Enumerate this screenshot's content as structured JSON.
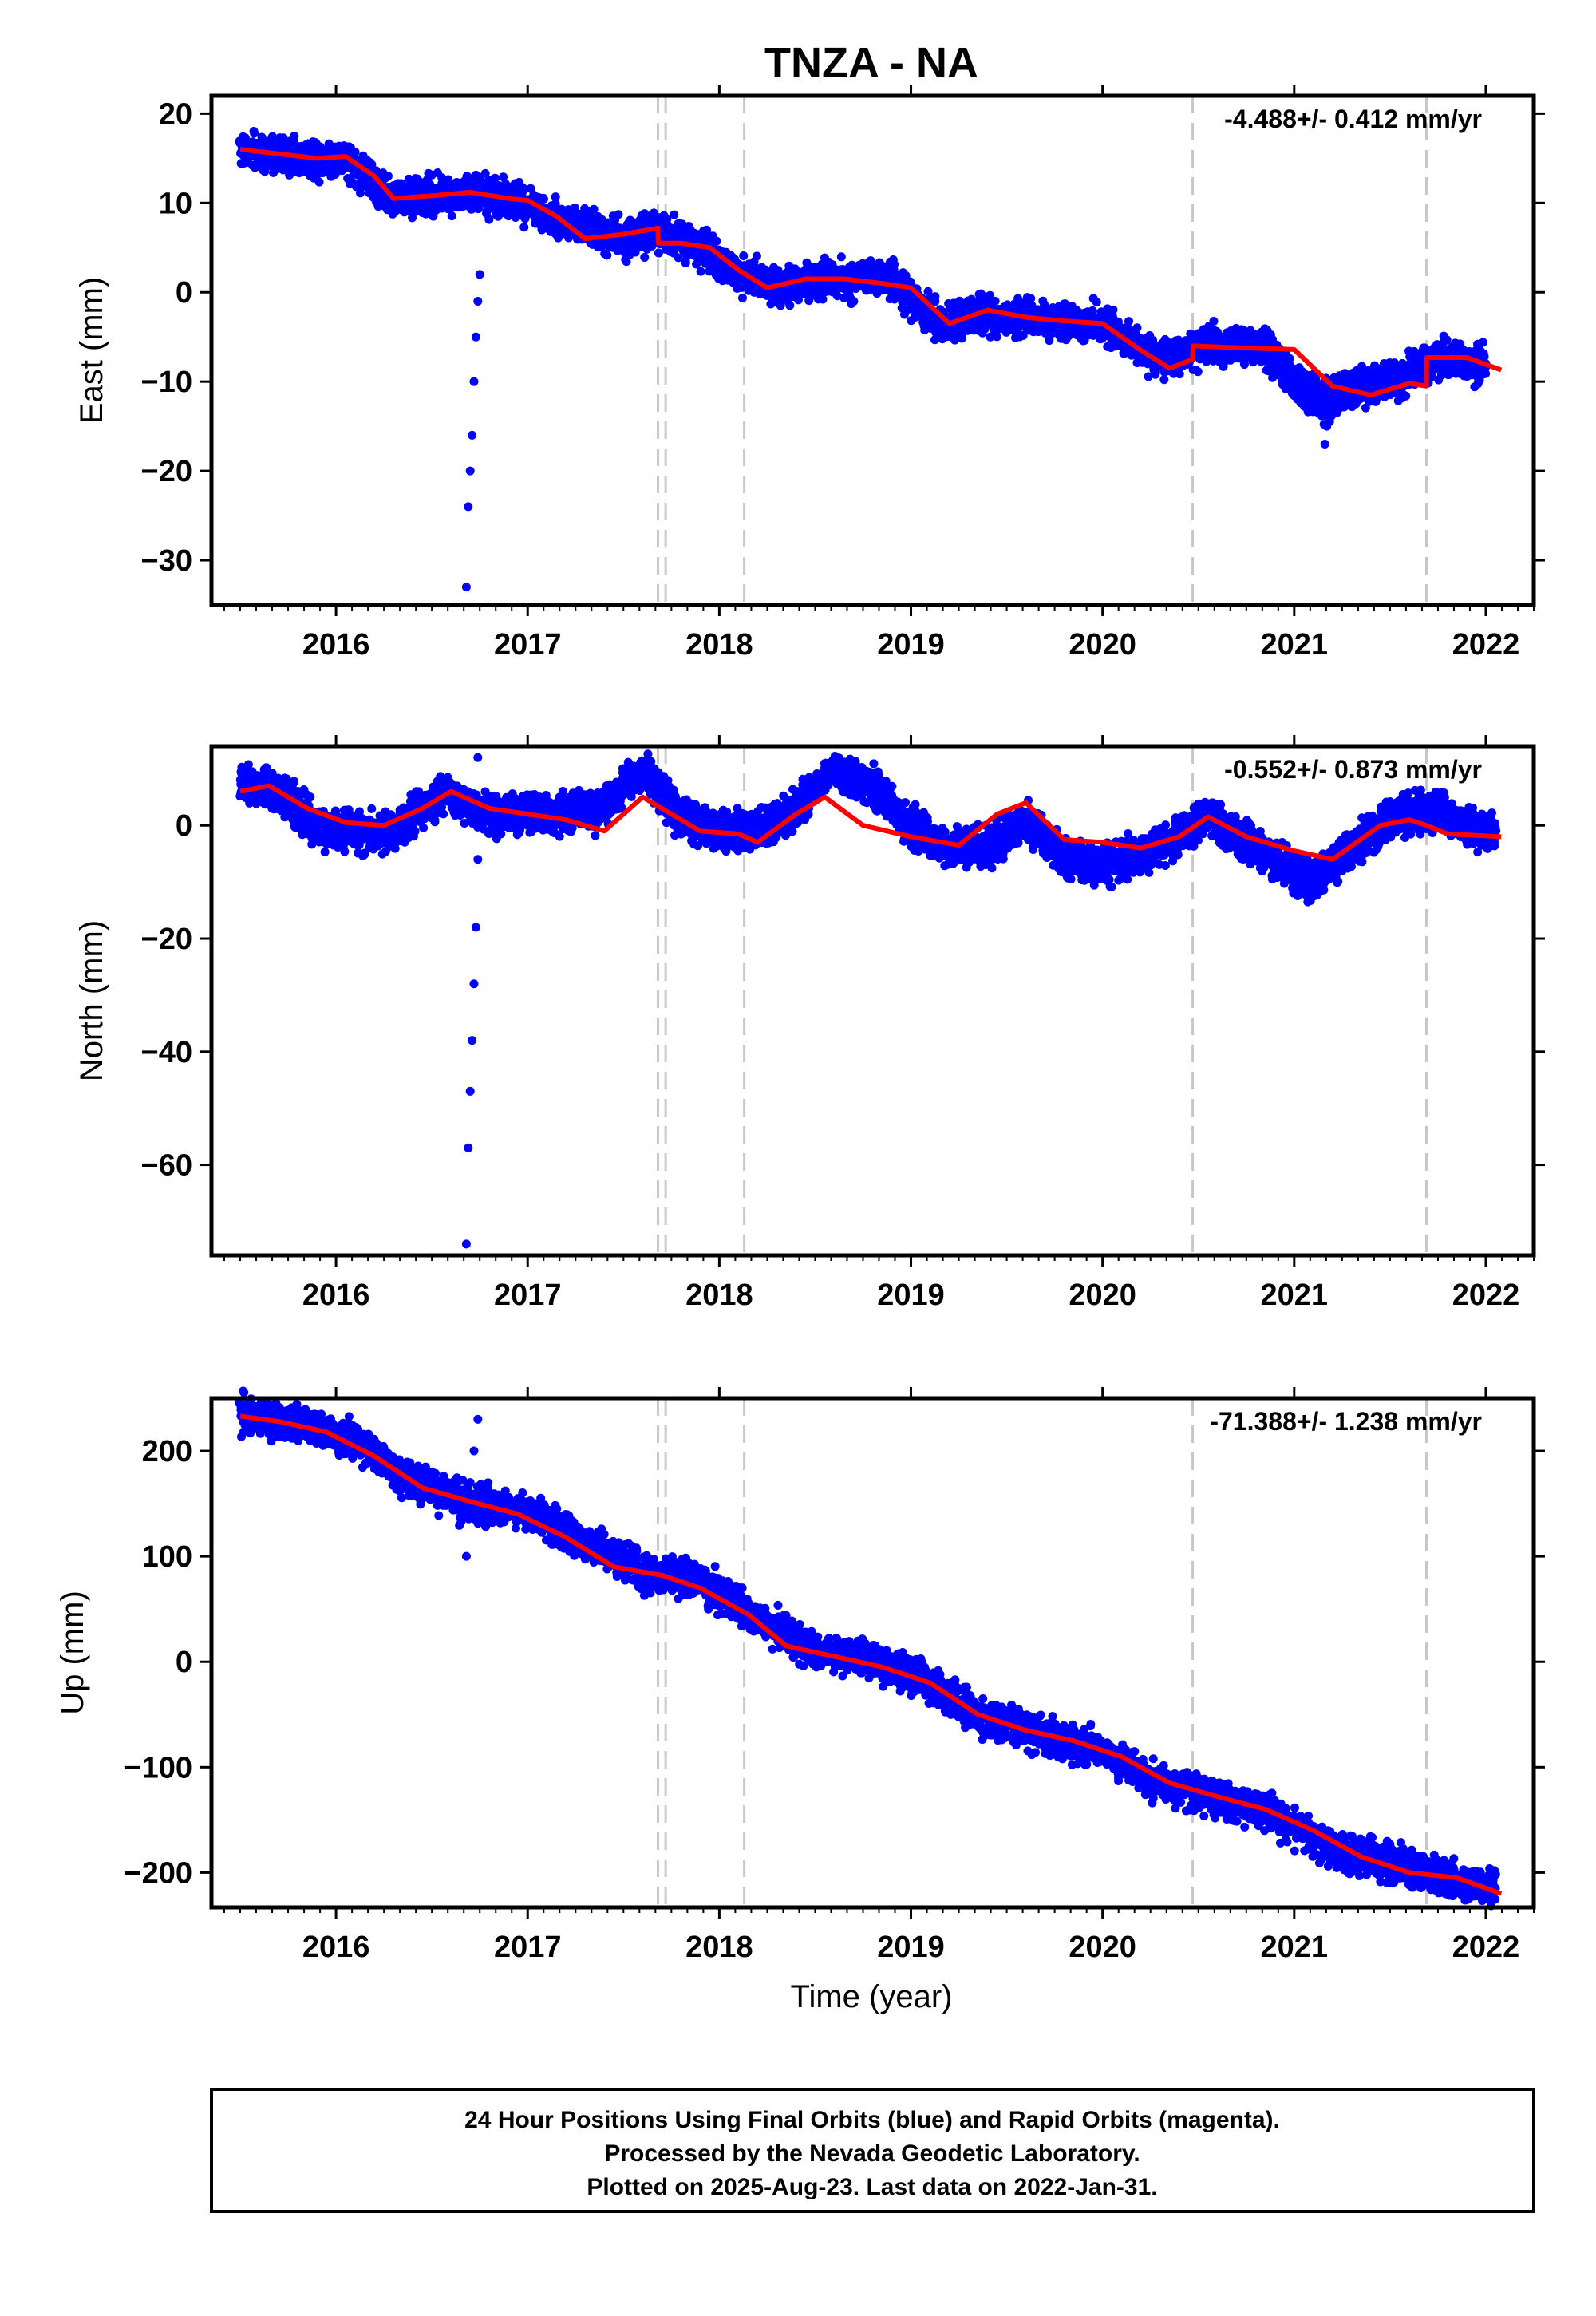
{
  "title": "TNZA - NA",
  "xlabel": "Time (year)",
  "footer": {
    "line1": "24 Hour Positions Using Final Orbits (blue) and Rapid Orbits (magenta).",
    "line2": "Processed by the Nevada Geodetic Laboratory.",
    "line3": "Plotted on 2025-Aug-23. Last data on 2022-Jan-31."
  },
  "colors": {
    "points": "#0000ff",
    "fit": "#ff0000",
    "events": "#c8c8c8",
    "frame": "#000000"
  },
  "chart_data": [
    {
      "type": "scatter",
      "ylabel": "East (mm)",
      "rate": "-4.488+/- 0.412 mm/yr",
      "xlim": [
        2015.35,
        2022.25
      ],
      "ylim": [
        -35,
        22
      ],
      "xticks": [
        2016,
        2017,
        2018,
        2019,
        2020,
        2021,
        2022
      ],
      "yticks": [
        -30,
        -20,
        -10,
        0,
        10,
        20
      ],
      "events": [
        2017.68,
        2017.72,
        2018.13,
        2020.47,
        2021.69
      ],
      "fit": {
        "name": "",
        "x": [
          2015.5,
          2015.7,
          2015.9,
          2016.05,
          2016.2,
          2016.3,
          2016.5,
          2016.7,
          2016.9,
          2017.0,
          2017.15,
          2017.3,
          2017.5,
          2017.68,
          2017.681,
          2017.8,
          2017.95,
          2018.1,
          2018.25,
          2018.45,
          2018.65,
          2018.85,
          2019.0,
          2019.2,
          2019.4,
          2019.6,
          2019.8,
          2020.0,
          2020.2,
          2020.35,
          2020.47,
          2020.471,
          2020.7,
          2021.0,
          2021.2,
          2021.4,
          2021.6,
          2021.69,
          2021.691,
          2021.9,
          2022.08
        ],
        "y": [
          16,
          15.5,
          15,
          15.2,
          13,
          10.5,
          10.8,
          11.2,
          10.5,
          10.3,
          8.5,
          6,
          6.5,
          7.2,
          5.5,
          5.5,
          5,
          2.5,
          0.5,
          1.5,
          1.5,
          1,
          0.5,
          -3.5,
          -2,
          -2.8,
          -3.2,
          -3.5,
          -6.5,
          -8.5,
          -7.5,
          -6,
          -6.2,
          -6.4,
          -10.5,
          -11.5,
          -10.2,
          -10.5,
          -7.3,
          -7.3,
          -8.7
        ]
      },
      "series": [
        {
          "x": [
            2015.5,
            2015.8,
            2016.05,
            2016.3,
            2016.6,
            2016.9,
            2017.2,
            2017.5,
            2017.68,
            2017.9,
            2018.1,
            2018.35,
            2018.6,
            2018.9,
            2019.15,
            2019.4,
            2019.7,
            2020.0,
            2020.3,
            2020.55,
            2020.85,
            2021.0,
            2021.15,
            2021.3,
            2021.5,
            2021.75,
            2022.0
          ],
          "y": [
            16,
            15,
            15,
            10.5,
            11,
            10.5,
            8,
            6,
            7,
            5,
            2,
            0.5,
            1.5,
            1.5,
            -3.5,
            -2.5,
            -3,
            -3.5,
            -7.5,
            -6,
            -6.2,
            -10,
            -12,
            -11,
            -10,
            -7.5,
            -8
          ]
        },
        {
          "x": [
            2016.68,
            2016.69,
            2016.7,
            2016.71,
            2016.72,
            2016.73,
            2016.74,
            2016.75
          ],
          "y": [
            -33,
            -24,
            -20,
            -16,
            -10,
            -5,
            -1,
            2
          ]
        },
        {
          "x": [
            2021.16,
            2021.17
          ],
          "y": [
            -17,
            -15
          ]
        }
      ]
    },
    {
      "type": "scatter",
      "ylabel": "North (mm)",
      "rate": "-0.552+/- 0.873 mm/yr",
      "xlim": [
        2015.35,
        2022.25
      ],
      "ylim": [
        -76,
        14
      ],
      "xticks": [
        2016,
        2017,
        2018,
        2019,
        2020,
        2021,
        2022
      ],
      "yticks": [
        -60,
        -40,
        -20,
        0
      ],
      "events": [
        2017.68,
        2017.72,
        2018.13,
        2020.47,
        2021.69
      ],
      "fit": {
        "name": "",
        "x": [
          2015.5,
          2015.65,
          2015.85,
          2016.05,
          2016.25,
          2016.45,
          2016.6,
          2016.8,
          2017.0,
          2017.2,
          2017.4,
          2017.6,
          2017.75,
          2017.9,
          2018.1,
          2018.2,
          2018.4,
          2018.55,
          2018.75,
          2019.0,
          2019.25,
          2019.45,
          2019.6,
          2019.8,
          2020.0,
          2020.2,
          2020.4,
          2020.55,
          2020.75,
          2021.0,
          2021.2,
          2021.45,
          2021.6,
          2021.69,
          2021.8,
          2022.08
        ],
        "y": [
          6,
          7,
          3,
          0.5,
          0,
          3,
          6,
          3,
          2,
          1,
          -1,
          5,
          2,
          -1,
          -1.5,
          -3,
          2,
          5,
          0,
          -2,
          -3.5,
          2,
          4,
          -2.5,
          -3,
          -4,
          -2,
          1.5,
          -2,
          -4.5,
          -6,
          0,
          1,
          0,
          -1.5,
          -2
        ]
      },
      "series": [
        {
          "x": [
            2015.5,
            2015.7,
            2015.9,
            2016.1,
            2016.3,
            2016.55,
            2016.8,
            2017.0,
            2017.2,
            2017.4,
            2017.6,
            2017.8,
            2018.0,
            2018.2,
            2018.4,
            2018.6,
            2018.8,
            2019.0,
            2019.2,
            2019.4,
            2019.6,
            2019.8,
            2020.0,
            2020.2,
            2020.4,
            2020.55,
            2020.75,
            2020.95,
            2021.1,
            2021.3,
            2021.5,
            2021.7,
            2021.9,
            2022.05
          ],
          "y": [
            7,
            6,
            0,
            -1,
            -1,
            6,
            2,
            2,
            2,
            3,
            10,
            1,
            -1,
            -1,
            3,
            10,
            7,
            0,
            -4,
            -4,
            1,
            -6,
            -7,
            -5,
            -2,
            2,
            -3,
            -7,
            -10,
            -4,
            1,
            3,
            0,
            -1
          ]
        },
        {
          "x": [
            2016.68,
            2016.69,
            2016.7,
            2016.71,
            2016.72,
            2016.73,
            2016.74
          ],
          "y": [
            -74,
            -57,
            -47,
            -38,
            -28,
            -18,
            -6
          ]
        },
        {
          "x": [
            2016.74
          ],
          "y": [
            12
          ]
        }
      ]
    },
    {
      "type": "scatter",
      "ylabel": "Up (mm)",
      "xlabel": "Time (year)",
      "rate": "-71.388+/- 1.238 mm/yr",
      "xlim": [
        2015.35,
        2022.25
      ],
      "ylim": [
        -233,
        250
      ],
      "xticks": [
        2016,
        2017,
        2018,
        2019,
        2020,
        2021,
        2022
      ],
      "yticks": [
        -200,
        -100,
        0,
        100,
        200
      ],
      "events": [
        2017.68,
        2017.72,
        2018.13,
        2020.47,
        2021.69
      ],
      "fit": {
        "name": "",
        "x": [
          2015.5,
          2015.7,
          2015.95,
          2016.2,
          2016.45,
          2016.7,
          2016.95,
          2017.2,
          2017.45,
          2017.7,
          2017.9,
          2018.15,
          2018.35,
          2018.6,
          2018.85,
          2019.1,
          2019.35,
          2019.6,
          2019.85,
          2020.1,
          2020.35,
          2020.6,
          2020.85,
          2021.1,
          2021.35,
          2021.6,
          2021.85,
          2022.08
        ],
        "y": [
          233,
          228,
          218,
          195,
          165,
          152,
          140,
          118,
          90,
          82,
          70,
          45,
          15,
          5,
          -5,
          -20,
          -50,
          -65,
          -75,
          -90,
          -115,
          -128,
          -140,
          -160,
          -185,
          -200,
          -205,
          -220
        ]
      },
      "series": [
        {
          "x": [
            2015.5,
            2015.8,
            2016.1,
            2016.4,
            2016.7,
            2017.0,
            2017.3,
            2017.6,
            2017.9,
            2018.2,
            2018.5,
            2018.8,
            2019.1,
            2019.4,
            2019.7,
            2020.0,
            2020.3,
            2020.6,
            2020.9,
            2021.2,
            2021.4,
            2021.6,
            2021.8,
            2022.05
          ],
          "y": [
            235,
            225,
            210,
            170,
            150,
            142,
            115,
            85,
            75,
            40,
            10,
            0,
            -20,
            -55,
            -70,
            -85,
            -115,
            -130,
            -145,
            -180,
            -185,
            -195,
            -205,
            -215
          ]
        },
        {
          "x": [
            2016.68,
            2016.7,
            2016.72,
            2016.74
          ],
          "y": [
            100,
            170,
            200,
            230
          ]
        }
      ]
    }
  ]
}
